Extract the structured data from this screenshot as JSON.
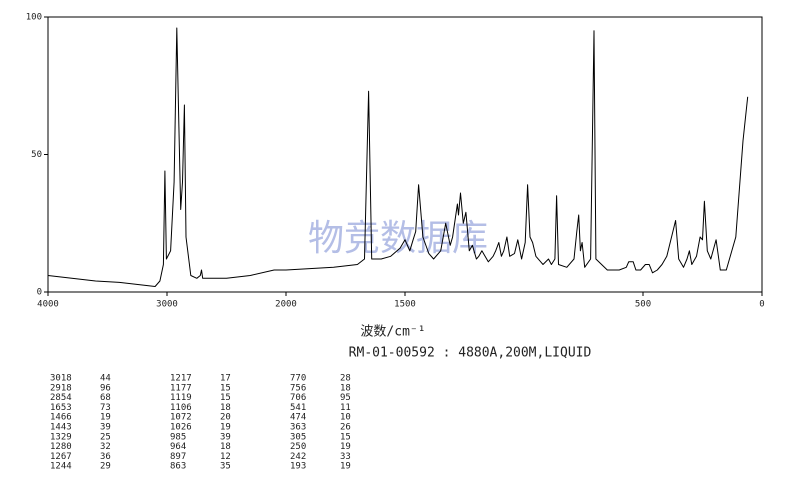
{
  "chart_data": {
    "type": "line",
    "xlim": [
      4000,
      0
    ],
    "x_break": 2000,
    "ylim": [
      0,
      100
    ],
    "xticks": [
      4000,
      3000,
      2000,
      1500,
      500,
      0
    ],
    "yticks": [
      0,
      50,
      100
    ],
    "xlabel": "波数/cm⁻¹",
    "subtitle": "RM-01-00592 : 4880A,200M,LIQUID",
    "watermark": "物竞数据库",
    "color": "#000000",
    "x": [
      4000,
      3800,
      3600,
      3400,
      3200,
      3100,
      3060,
      3030,
      3018,
      3005,
      2970,
      2940,
      2918,
      2900,
      2885,
      2870,
      2854,
      2840,
      2800,
      2750,
      2720,
      2710,
      2700,
      2500,
      2300,
      2100,
      2000,
      1800,
      1700,
      1670,
      1653,
      1640,
      1600,
      1560,
      1520,
      1500,
      1480,
      1466,
      1455,
      1443,
      1425,
      1400,
      1380,
      1350,
      1329,
      1310,
      1300,
      1280,
      1275,
      1267,
      1255,
      1244,
      1230,
      1217,
      1200,
      1190,
      1177,
      1150,
      1130,
      1119,
      1106,
      1095,
      1085,
      1072,
      1060,
      1040,
      1026,
      1010,
      995,
      985,
      975,
      964,
      950,
      930,
      920,
      897,
      885,
      870,
      863,
      855,
      820,
      790,
      778,
      770,
      763,
      756,
      745,
      720,
      706,
      698,
      650,
      600,
      570,
      560,
      541,
      530,
      510,
      490,
      474,
      460,
      440,
      420,
      400,
      363,
      350,
      330,
      315,
      305,
      295,
      275,
      260,
      250,
      242,
      230,
      215,
      193,
      175,
      150,
      110,
      80,
      60
    ],
    "values": [
      6,
      5,
      4,
      3.5,
      2.5,
      2,
      4,
      10,
      44,
      12,
      15,
      40,
      96,
      60,
      30,
      40,
      68,
      20,
      6,
      5,
      6,
      8,
      5,
      5,
      6,
      8,
      8,
      9,
      10,
      12,
      73,
      12,
      12,
      13,
      16,
      19,
      15,
      19,
      22,
      39,
      20,
      14,
      12,
      15,
      25,
      17,
      20,
      32,
      28,
      36,
      25,
      29,
      15,
      17,
      12,
      13,
      15,
      11,
      13,
      15,
      18,
      13,
      15,
      20,
      13,
      14,
      19,
      12,
      18,
      39,
      20,
      18,
      13,
      11,
      10,
      12,
      10,
      12,
      35,
      10,
      9,
      12,
      22,
      28,
      15,
      18,
      9,
      12,
      95,
      12,
      8,
      8,
      9,
      11,
      11,
      8,
      8,
      10,
      10,
      7,
      8,
      10,
      13,
      26,
      12,
      9,
      12,
      15,
      10,
      13,
      20,
      19,
      33,
      15,
      12,
      19,
      8,
      8,
      20,
      55,
      71
    ]
  },
  "peak_table": {
    "rows": [
      [
        3018,
        44
      ],
      [
        2918,
        96
      ],
      [
        2854,
        68
      ],
      [
        1653,
        73
      ],
      [
        1466,
        19
      ],
      [
        1443,
        39
      ],
      [
        1329,
        25
      ],
      [
        1280,
        32
      ],
      [
        1267,
        36
      ],
      [
        1244,
        29
      ],
      [
        1217,
        17
      ],
      [
        1177,
        15
      ],
      [
        1119,
        15
      ],
      [
        1106,
        18
      ],
      [
        1072,
        20
      ],
      [
        1026,
        19
      ],
      [
        985,
        39
      ],
      [
        964,
        18
      ],
      [
        897,
        12
      ],
      [
        863,
        35
      ],
      [
        770,
        28
      ],
      [
        756,
        18
      ],
      [
        706,
        95
      ],
      [
        541,
        11
      ],
      [
        474,
        10
      ],
      [
        363,
        26
      ],
      [
        305,
        15
      ],
      [
        250,
        19
      ],
      [
        242,
        33
      ],
      [
        193,
        19
      ]
    ]
  }
}
